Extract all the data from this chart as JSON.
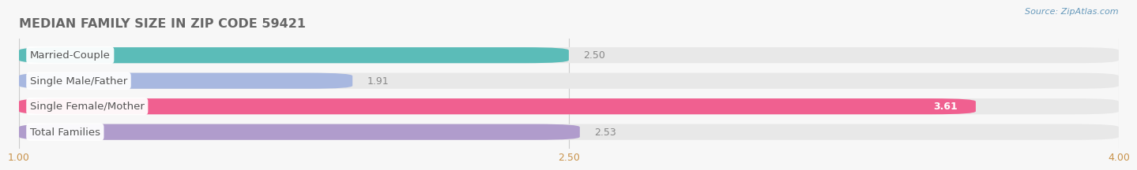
{
  "title": "MEDIAN FAMILY SIZE IN ZIP CODE 59421",
  "source": "Source: ZipAtlas.com",
  "categories": [
    "Married-Couple",
    "Single Male/Father",
    "Single Female/Mother",
    "Total Families"
  ],
  "values": [
    2.5,
    1.91,
    3.61,
    2.53
  ],
  "bar_colors": [
    "#5bbcb8",
    "#a8b8e0",
    "#f06090",
    "#b09ccc"
  ],
  "xlim": [
    1.0,
    4.0
  ],
  "xticks": [
    1.0,
    2.5,
    4.0
  ],
  "xtick_labels": [
    "1.00",
    "2.50",
    "4.00"
  ],
  "bar_height": 0.62,
  "title_fontsize": 11.5,
  "label_fontsize": 9.5,
  "value_fontsize": 9,
  "source_fontsize": 8,
  "tick_fontsize": 9,
  "bg_color": "#f7f7f7",
  "bar_bg_color": "#e8e8e8",
  "title_color": "#666666",
  "tick_color": "#c8924a",
  "value_color_inside": "#ffffff",
  "value_color_outside": "#888888",
  "source_color": "#6699bb",
  "label_text_color": "#555555",
  "grid_color": "#cccccc",
  "value_bold_inside": true
}
